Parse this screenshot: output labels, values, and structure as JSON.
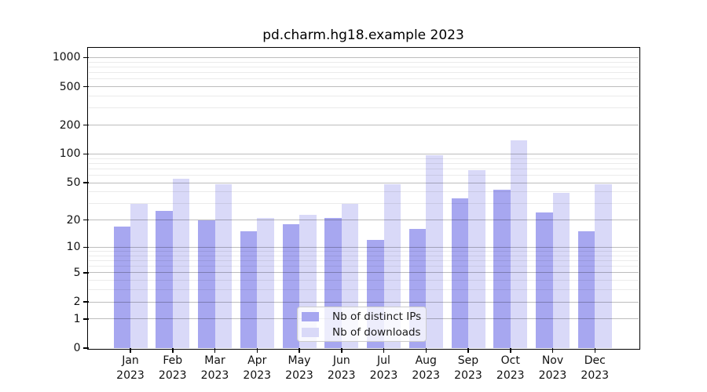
{
  "title": "pd.charm.hg18.example 2023",
  "legend": {
    "items": [
      {
        "label": "Nb of distinct IPs",
        "color": "#a7a7f0"
      },
      {
        "label": "Nb of downloads",
        "color": "#d9d9f8"
      }
    ]
  },
  "chart_data": {
    "type": "bar",
    "title": "pd.charm.hg18.example 2023",
    "categories": [
      "Jan 2023",
      "Feb 2023",
      "Mar 2023",
      "Apr 2023",
      "May 2023",
      "Jun 2023",
      "Jul 2023",
      "Aug 2023",
      "Sep 2023",
      "Oct 2023",
      "Nov 2023",
      "Dec 2023"
    ],
    "x_tick_labels": [
      {
        "month": "Jan",
        "year": "2023"
      },
      {
        "month": "Feb",
        "year": "2023"
      },
      {
        "month": "Mar",
        "year": "2023"
      },
      {
        "month": "Apr",
        "year": "2023"
      },
      {
        "month": "May",
        "year": "2023"
      },
      {
        "month": "Jun",
        "year": "2023"
      },
      {
        "month": "Jul",
        "year": "2023"
      },
      {
        "month": "Aug",
        "year": "2023"
      },
      {
        "month": "Sep",
        "year": "2023"
      },
      {
        "month": "Oct",
        "year": "2023"
      },
      {
        "month": "Nov",
        "year": "2023"
      },
      {
        "month": "Dec",
        "year": "2023"
      }
    ],
    "series": [
      {
        "name": "Nb of distinct IPs",
        "color": "#a7a7f0",
        "values": [
          17,
          25,
          20,
          15,
          18,
          21,
          12,
          16,
          34,
          42,
          24,
          15
        ]
      },
      {
        "name": "Nb of downloads",
        "color": "#d9d9f8",
        "values": [
          30,
          55,
          48,
          21,
          23,
          30,
          48,
          97,
          68,
          140,
          39,
          48
        ]
      }
    ],
    "xlabel": "",
    "ylabel": "",
    "yscale": "log10(1+x)",
    "yticks": [
      0,
      1,
      2,
      5,
      10,
      20,
      50,
      100,
      200,
      500,
      1000
    ],
    "ytick_minor": [
      3,
      4,
      6,
      7,
      8,
      9,
      30,
      40,
      60,
      70,
      80,
      90,
      300,
      400,
      600,
      700,
      800,
      900
    ],
    "ylim": [
      0,
      1260
    ],
    "grid": "horizontal, major and minor",
    "legend_position": "lower center inside axes"
  },
  "colors": {
    "bar_distinct_ips": "#a7a7f0",
    "bar_downloads": "#d9d9f8",
    "grid_major": "rgba(0,0,0,0.26)",
    "grid_minor": "rgba(0,0,0,0.08)",
    "axes_edge": "#000000",
    "background": "#ffffff"
  }
}
